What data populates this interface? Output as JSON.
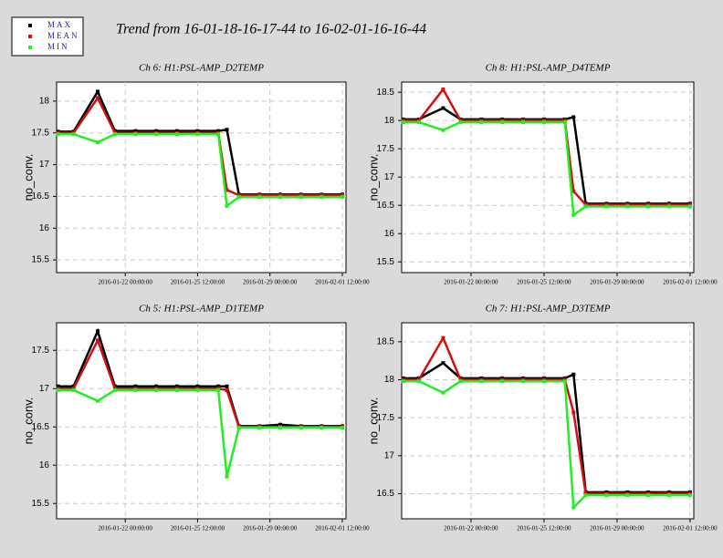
{
  "title": "Trend from 16-01-18-16-17-44 to 16-02-01-16-16-44",
  "chart_data": [
    {
      "type": "line",
      "title": "Ch 6: H1:PSL-AMP_D2TEMP",
      "ylabel": "no_conv.",
      "grid": true,
      "x": [
        "2016-01-18 18:00",
        "2016-01-19 12:00",
        "2016-01-20 16:00",
        "2016-01-21 12:00",
        "2016-01-22 12:00",
        "2016-01-23 12:00",
        "2016-01-24 12:00",
        "2016-01-25 12:00",
        "2016-01-26 12:00",
        "2016-01-26 22:00",
        "2016-01-27 12:00",
        "2016-01-28 12:00",
        "2016-01-29 12:00",
        "2016-01-30 12:00",
        "2016-01-31 12:00",
        "2016-02-01 12:00"
      ],
      "xlim": [
        "2016-01-18 16:17:44",
        "2016-02-01 16:16:44"
      ],
      "xticks": [
        "2016-01-22 00:00:00",
        "2016-01-25 12:00:00",
        "2016-01-29 00:00:00",
        "2016-02-01 12:00:00"
      ],
      "ylim": [
        15.3,
        18.3
      ],
      "yticks": [
        15.5,
        16,
        16.5,
        17,
        17.5,
        18
      ],
      "series": [
        {
          "name": "MAX",
          "color": "#000000",
          "values": [
            17.52,
            17.52,
            18.15,
            17.53,
            17.53,
            17.53,
            17.53,
            17.53,
            17.53,
            17.55,
            16.53,
            16.53,
            16.53,
            16.53,
            16.53,
            16.53
          ]
        },
        {
          "name": "MEAN",
          "color": "#d01010",
          "values": [
            17.5,
            17.5,
            18.05,
            17.5,
            17.5,
            17.5,
            17.5,
            17.5,
            17.5,
            16.6,
            16.52,
            16.52,
            16.52,
            16.52,
            16.52,
            16.52
          ]
        },
        {
          "name": "MIN",
          "color": "#22ee22",
          "values": [
            17.48,
            17.48,
            17.35,
            17.48,
            17.48,
            17.48,
            17.48,
            17.48,
            17.48,
            16.35,
            16.49,
            16.49,
            16.49,
            16.49,
            16.49,
            16.49
          ]
        }
      ]
    },
    {
      "type": "line",
      "title": "Ch 8: H1:PSL-AMP_D4TEMP",
      "ylabel": "no_conv.",
      "grid": true,
      "x": [
        "2016-01-18 18:00",
        "2016-01-19 12:00",
        "2016-01-20 16:00",
        "2016-01-21 12:00",
        "2016-01-22 12:00",
        "2016-01-23 12:00",
        "2016-01-24 12:00",
        "2016-01-25 12:00",
        "2016-01-26 12:00",
        "2016-01-26 22:00",
        "2016-01-27 12:00",
        "2016-01-28 12:00",
        "2016-01-29 12:00",
        "2016-01-30 12:00",
        "2016-01-31 12:00",
        "2016-02-01 12:00"
      ],
      "xlim": [
        "2016-01-18 16:17:44",
        "2016-02-01 16:16:44"
      ],
      "xticks": [
        "2016-01-22 00:00:00",
        "2016-01-25 12:00:00",
        "2016-01-29 00:00:00",
        "2016-02-01 12:00:00"
      ],
      "ylim": [
        15.31,
        18.68
      ],
      "yticks": [
        15.5,
        16,
        16.5,
        17,
        17.5,
        18,
        18.5
      ],
      "series": [
        {
          "name": "MAX",
          "color": "#000000",
          "values": [
            18.02,
            18.02,
            18.22,
            18.02,
            18.02,
            18.02,
            18.02,
            18.02,
            18.02,
            18.06,
            16.53,
            16.53,
            16.53,
            16.53,
            16.53,
            16.53
          ]
        },
        {
          "name": "MEAN",
          "color": "#d01010",
          "values": [
            18.0,
            18.0,
            18.55,
            18.0,
            18.0,
            18.0,
            18.0,
            18.0,
            18.0,
            16.75,
            16.51,
            16.51,
            16.51,
            16.51,
            16.51,
            16.51
          ]
        },
        {
          "name": "MIN",
          "color": "#22ee22",
          "values": [
            17.97,
            17.97,
            17.83,
            17.97,
            17.97,
            17.97,
            17.97,
            17.97,
            17.97,
            16.33,
            16.48,
            16.48,
            16.48,
            16.48,
            16.48,
            16.48
          ]
        }
      ]
    },
    {
      "type": "line",
      "title": "Ch 5: H1:PSL-AMP_D1TEMP",
      "ylabel": "no_conv.",
      "grid": true,
      "x": [
        "2016-01-18 18:00",
        "2016-01-19 12:00",
        "2016-01-20 16:00",
        "2016-01-21 12:00",
        "2016-01-22 12:00",
        "2016-01-23 12:00",
        "2016-01-24 12:00",
        "2016-01-25 12:00",
        "2016-01-26 12:00",
        "2016-01-26 22:00",
        "2016-01-27 12:00",
        "2016-01-28 12:00",
        "2016-01-29 12:00",
        "2016-01-30 12:00",
        "2016-01-31 12:00",
        "2016-02-01 12:00"
      ],
      "xlim": [
        "2016-01-18 16:17:44",
        "2016-02-01 16:16:44"
      ],
      "xticks": [
        "2016-01-22 00:00:00",
        "2016-01-25 12:00:00",
        "2016-01-29 00:00:00",
        "2016-02-01 12:00:00"
      ],
      "ylim": [
        15.3,
        17.86
      ],
      "yticks": [
        15.5,
        16,
        16.5,
        17,
        17.5
      ],
      "series": [
        {
          "name": "MAX",
          "color": "#000000",
          "values": [
            17.03,
            17.03,
            17.75,
            17.03,
            17.03,
            17.03,
            17.03,
            17.03,
            17.03,
            17.03,
            16.51,
            16.51,
            16.53,
            16.51,
            16.51,
            16.51
          ]
        },
        {
          "name": "MEAN",
          "color": "#d01010",
          "values": [
            17.0,
            17.0,
            17.63,
            17.0,
            17.0,
            17.0,
            17.0,
            17.0,
            17.0,
            16.98,
            16.5,
            16.5,
            16.5,
            16.5,
            16.5,
            16.5
          ]
        },
        {
          "name": "MIN",
          "color": "#22ee22",
          "values": [
            16.98,
            16.98,
            16.84,
            16.98,
            16.98,
            16.98,
            16.98,
            16.98,
            16.98,
            15.85,
            16.49,
            16.49,
            16.49,
            16.49,
            16.49,
            16.49
          ]
        }
      ]
    },
    {
      "type": "line",
      "title": "Ch 7: H1:PSL-AMP_D3TEMP",
      "ylabel": "no_conv.",
      "grid": true,
      "x": [
        "2016-01-18 18:00",
        "2016-01-19 12:00",
        "2016-01-20 16:00",
        "2016-01-21 12:00",
        "2016-01-22 12:00",
        "2016-01-23 12:00",
        "2016-01-24 12:00",
        "2016-01-25 12:00",
        "2016-01-26 12:00",
        "2016-01-26 22:00",
        "2016-01-27 12:00",
        "2016-01-28 12:00",
        "2016-01-29 12:00",
        "2016-01-30 12:00",
        "2016-01-31 12:00",
        "2016-02-01 12:00"
      ],
      "xlim": [
        "2016-01-18 16:17:44",
        "2016-02-01 16:16:44"
      ],
      "xticks": [
        "2016-01-22 00:00:00",
        "2016-01-25 12:00:00",
        "2016-01-29 00:00:00",
        "2016-02-01 12:00:00"
      ],
      "ylim": [
        16.17,
        18.75
      ],
      "yticks": [
        16.5,
        17,
        17.5,
        18,
        18.5
      ],
      "series": [
        {
          "name": "MAX",
          "color": "#000000",
          "values": [
            18.02,
            18.02,
            18.22,
            18.02,
            18.02,
            18.02,
            18.02,
            18.02,
            18.02,
            18.07,
            16.52,
            16.52,
            16.52,
            16.52,
            16.52,
            16.52
          ]
        },
        {
          "name": "MEAN",
          "color": "#d01010",
          "values": [
            18.0,
            18.0,
            18.55,
            18.0,
            18.0,
            18.0,
            18.0,
            18.0,
            18.0,
            17.57,
            16.5,
            16.5,
            16.5,
            16.5,
            16.5,
            16.5
          ]
        },
        {
          "name": "MIN",
          "color": "#22ee22",
          "values": [
            17.98,
            17.98,
            17.83,
            17.98,
            17.98,
            17.98,
            17.98,
            17.98,
            17.98,
            16.32,
            16.48,
            16.48,
            16.48,
            16.48,
            16.48,
            16.48
          ]
        }
      ]
    }
  ]
}
